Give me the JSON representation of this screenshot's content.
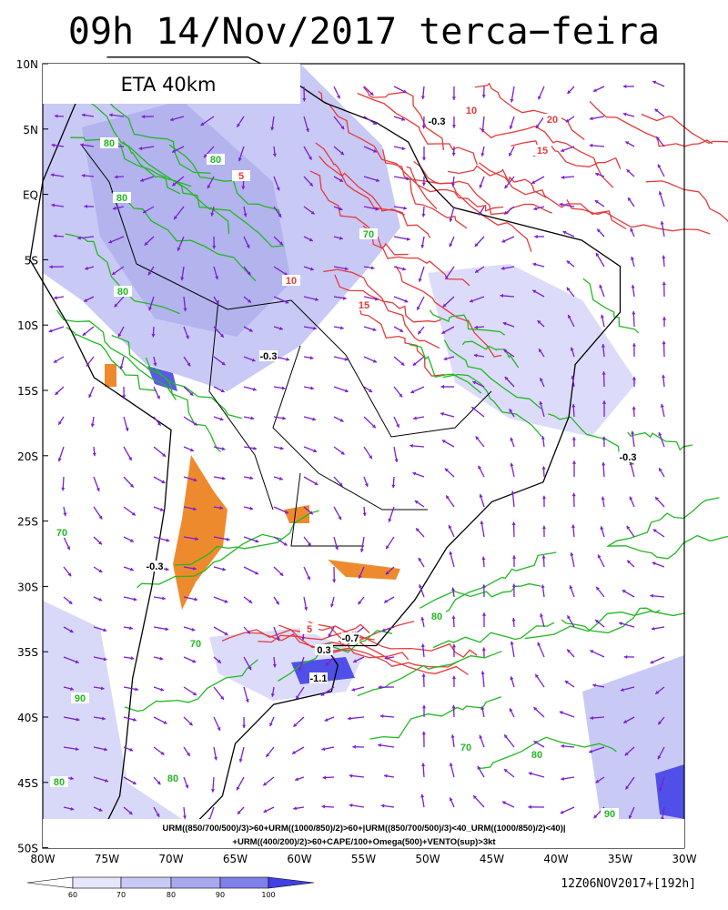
{
  "header": {
    "title": "09h 14/Nov/2017 terca−feira"
  },
  "model_label": "ETA 40km",
  "lat_labels": [
    "10N",
    "5N",
    "EQ",
    "5S",
    "10S",
    "15S",
    "20S",
    "25S",
    "30S",
    "35S",
    "40S",
    "45S",
    "50S"
  ],
  "lon_labels": [
    "80W",
    "75W",
    "70W",
    "65W",
    "60W",
    "55W",
    "50W",
    "45W",
    "40W",
    "35W",
    "30W"
  ],
  "legend_lines": [
    "URM((850/700/500)/3)>60+URM((1000/850)/2)>60+|URM((850/700/500)/3)<40_URM((1000/850)/2)<40)|",
    "+URM((400/200)/2)>60+CAPE/100+Omega(500)+VENTO(sup)>3kt"
  ],
  "colorbar": {
    "labels": [
      "60",
      "70",
      "80",
      "90",
      "100"
    ]
  },
  "run_stamp": "12Z06NOV2017+[192h]",
  "contour_labels": [
    "80",
    "80",
    "80",
    "70",
    "80",
    "70",
    "70",
    "80",
    "90",
    "80",
    "80",
    "70",
    "90",
    "80",
    "5",
    "10",
    "15",
    "20",
    "10",
    "15",
    "5",
    "-0.3",
    "-0.3",
    "-0.3",
    "-0.7",
    "0.3",
    "-1.1",
    "-0.3"
  ]
}
